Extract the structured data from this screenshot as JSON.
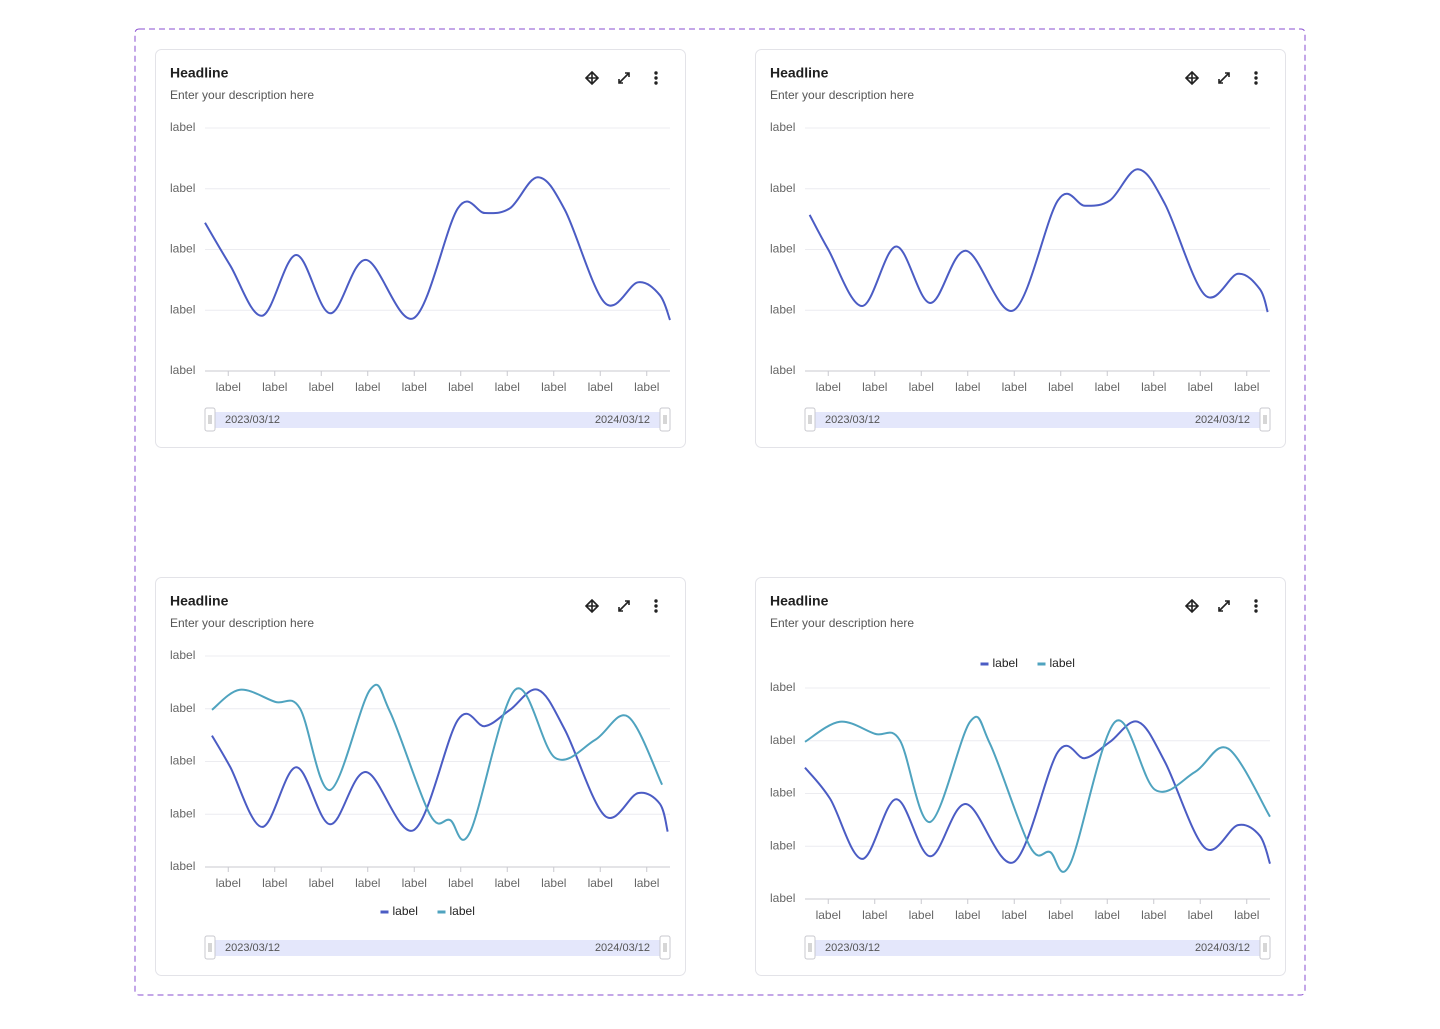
{
  "chart_data": [
    {
      "type": "line",
      "title": "Headline",
      "subtitle": "Enter your description here",
      "ylim": [
        0,
        4
      ],
      "yticks": [
        {
          "value": 0,
          "label": "label"
        },
        {
          "value": 1,
          "label": "label"
        },
        {
          "value": 2,
          "label": "label"
        },
        {
          "value": 3,
          "label": "label"
        },
        {
          "value": 4,
          "label": "label"
        }
      ],
      "xlim": [
        0,
        10
      ],
      "xticks": [
        {
          "value": 0.5,
          "label": "label"
        },
        {
          "value": 1.5,
          "label": "label"
        },
        {
          "value": 2.5,
          "label": "label"
        },
        {
          "value": 3.5,
          "label": "label"
        },
        {
          "value": 4.5,
          "label": "label"
        },
        {
          "value": 5.5,
          "label": "label"
        },
        {
          "value": 6.5,
          "label": "label"
        },
        {
          "value": 7.5,
          "label": "label"
        },
        {
          "value": 8.5,
          "label": "label"
        },
        {
          "value": 9.5,
          "label": "label"
        }
      ],
      "grid": true,
      "range_start": "2023/03/12",
      "range_end": "2024/03/12",
      "series": [
        {
          "color": "#4b5cc4",
          "x": [
            0,
            0.54,
            1.23,
            1.96,
            2.69,
            3.46,
            4.49,
            5.44,
            6.02,
            6.56,
            7.16,
            7.74,
            8.6,
            9.31,
            9.78,
            10
          ],
          "values": [
            2.44,
            1.74,
            0.91,
            1.91,
            0.95,
            1.83,
            0.87,
            2.68,
            2.6,
            2.68,
            3.19,
            2.65,
            1.12,
            1.46,
            1.25,
            0.84
          ]
        }
      ]
    },
    {
      "type": "line",
      "title": "Headline",
      "subtitle": "Enter your description here",
      "ylim": [
        0,
        4
      ],
      "yticks": [
        {
          "value": 0,
          "label": "label"
        },
        {
          "value": 1,
          "label": "label"
        },
        {
          "value": 2,
          "label": "label"
        },
        {
          "value": 3,
          "label": "label"
        },
        {
          "value": 4,
          "label": "label"
        }
      ],
      "xlim": [
        0,
        10
      ],
      "xticks": [
        {
          "value": 0.5,
          "label": "label"
        },
        {
          "value": 1.5,
          "label": "label"
        },
        {
          "value": 2.5,
          "label": "label"
        },
        {
          "value": 3.5,
          "label": "label"
        },
        {
          "value": 4.5,
          "label": "label"
        },
        {
          "value": 5.5,
          "label": "label"
        },
        {
          "value": 6.5,
          "label": "label"
        },
        {
          "value": 7.5,
          "label": "label"
        },
        {
          "value": 8.5,
          "label": "label"
        },
        {
          "value": 9.5,
          "label": "label"
        }
      ],
      "grid": true,
      "range_start": "2023/03/12",
      "range_end": "2024/03/12",
      "series": [
        {
          "color": "#4b5cc4",
          "x": [
            0.1,
            0.5,
            1.23,
            1.96,
            2.69,
            3.46,
            4.49,
            5.44,
            6.02,
            6.56,
            7.16,
            7.74,
            8.6,
            9.31,
            9.78,
            9.95
          ],
          "values": [
            2.57,
            2.0,
            1.07,
            2.05,
            1.12,
            1.98,
            1.0,
            2.81,
            2.72,
            2.81,
            3.32,
            2.75,
            1.25,
            1.6,
            1.35,
            0.97
          ]
        }
      ]
    },
    {
      "type": "line",
      "title": "Headline",
      "subtitle": "Enter your description here",
      "legend": "bottom",
      "ylim": [
        0,
        4
      ],
      "yticks": [
        {
          "value": 0,
          "label": "label"
        },
        {
          "value": 1,
          "label": "label"
        },
        {
          "value": 2,
          "label": "label"
        },
        {
          "value": 3,
          "label": "label"
        },
        {
          "value": 4,
          "label": "label"
        }
      ],
      "xlim": [
        0,
        10
      ],
      "xticks": [
        {
          "value": 0.5,
          "label": "label"
        },
        {
          "value": 1.5,
          "label": "label"
        },
        {
          "value": 2.5,
          "label": "label"
        },
        {
          "value": 3.5,
          "label": "label"
        },
        {
          "value": 4.5,
          "label": "label"
        },
        {
          "value": 5.5,
          "label": "label"
        },
        {
          "value": 6.5,
          "label": "label"
        },
        {
          "value": 7.5,
          "label": "label"
        },
        {
          "value": 8.5,
          "label": "label"
        },
        {
          "value": 9.5,
          "label": "label"
        }
      ],
      "grid": true,
      "range_start": "2023/03/12",
      "range_end": "2024/03/12",
      "series": [
        {
          "name": "label",
          "color": "#4b5cc4",
          "x": [
            0.15,
            0.54,
            1.23,
            1.96,
            2.69,
            3.46,
            4.49,
            5.44,
            6.02,
            6.56,
            7.16,
            7.74,
            8.6,
            9.31,
            9.78,
            9.95
          ],
          "values": [
            2.49,
            1.9,
            0.76,
            1.89,
            0.81,
            1.8,
            0.7,
            2.79,
            2.67,
            2.98,
            3.36,
            2.6,
            0.97,
            1.4,
            1.2,
            0.67
          ]
        },
        {
          "name": "label",
          "color": "#4fa3bf",
          "x": [
            0.15,
            0.75,
            1.51,
            2.04,
            2.69,
            3.55,
            3.98,
            4.84,
            5.27,
            5.7,
            6.67,
            7.53,
            8.39,
            9.1,
            9.83
          ],
          "values": [
            2.98,
            3.36,
            3.13,
            3.01,
            1.46,
            3.36,
            2.94,
            0.99,
            0.89,
            0.66,
            3.36,
            2.07,
            2.41,
            2.85,
            1.56
          ]
        }
      ]
    },
    {
      "type": "line",
      "title": "Headline",
      "subtitle": "Enter your description here",
      "legend": "top",
      "ylim": [
        0,
        4
      ],
      "yticks": [
        {
          "value": 0,
          "label": "label"
        },
        {
          "value": 1,
          "label": "label"
        },
        {
          "value": 2,
          "label": "label"
        },
        {
          "value": 3,
          "label": "label"
        },
        {
          "value": 4,
          "label": "label"
        }
      ],
      "xlim": [
        0,
        10
      ],
      "xticks": [
        {
          "value": 0.5,
          "label": "label"
        },
        {
          "value": 1.5,
          "label": "label"
        },
        {
          "value": 2.5,
          "label": "label"
        },
        {
          "value": 3.5,
          "label": "label"
        },
        {
          "value": 4.5,
          "label": "label"
        },
        {
          "value": 5.5,
          "label": "label"
        },
        {
          "value": 6.5,
          "label": "label"
        },
        {
          "value": 7.5,
          "label": "label"
        },
        {
          "value": 8.5,
          "label": "label"
        },
        {
          "value": 9.5,
          "label": "label"
        }
      ],
      "grid": true,
      "range_start": "2023/03/12",
      "range_end": "2024/03/12",
      "series": [
        {
          "name": "label",
          "color": "#4b5cc4",
          "x": [
            0,
            0.54,
            1.23,
            1.96,
            2.69,
            3.46,
            4.49,
            5.44,
            6.02,
            6.56,
            7.16,
            7.74,
            8.6,
            9.31,
            9.78,
            10
          ],
          "values": [
            2.49,
            1.9,
            0.76,
            1.89,
            0.81,
            1.8,
            0.7,
            2.79,
            2.67,
            2.98,
            3.36,
            2.6,
            0.97,
            1.4,
            1.2,
            0.67
          ]
        },
        {
          "name": "label",
          "color": "#4fa3bf",
          "x": [
            0,
            0.75,
            1.51,
            2.04,
            2.69,
            3.55,
            3.98,
            4.84,
            5.27,
            5.7,
            6.67,
            7.53,
            8.39,
            9.1,
            10
          ],
          "values": [
            2.98,
            3.36,
            3.13,
            3.01,
            1.46,
            3.36,
            2.94,
            0.99,
            0.89,
            0.66,
            3.36,
            2.07,
            2.41,
            2.85,
            1.56
          ]
        }
      ]
    }
  ]
}
